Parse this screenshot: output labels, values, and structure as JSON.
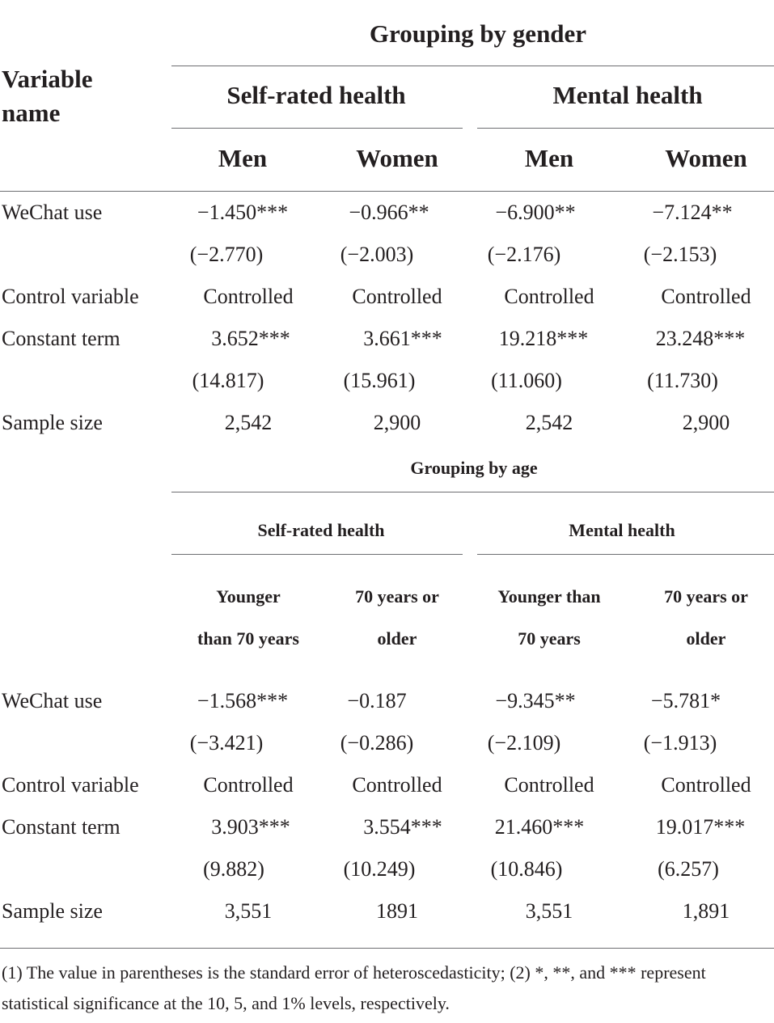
{
  "header": {
    "variable_name_line1": "Variable",
    "variable_name_line2": "name"
  },
  "gender": {
    "title": "Grouping by gender",
    "self_rated": "Self-rated health",
    "mental": "Mental health",
    "cols": [
      "Men",
      "Women",
      "Men",
      "Women"
    ],
    "rows": {
      "wechat": {
        "label": "WeChat use",
        "vals": [
          "−1.450***",
          "−0.966**",
          "−6.900**",
          "−7.124**"
        ],
        "se": [
          "(−2.770)",
          "(−2.003)",
          "(−2.176)",
          "(−2.153)"
        ]
      },
      "control": {
        "label": "Control variable",
        "vals": [
          "Controlled",
          "Controlled",
          "Controlled",
          "Controlled"
        ]
      },
      "constant": {
        "label": "Constant term",
        "vals": [
          "3.652***",
          "3.661***",
          "19.218***",
          "23.248***"
        ],
        "se": [
          "(14.817)",
          "(15.961)",
          "(11.060)",
          "(11.730)"
        ]
      },
      "sample": {
        "label": "Sample size",
        "vals": [
          "2,542",
          "2,900",
          "2,542",
          "2,900"
        ]
      }
    }
  },
  "age": {
    "title": "Grouping by age",
    "self_rated": "Self-rated health",
    "mental": "Mental health",
    "cols_line1": [
      "Younger",
      "70 years or",
      "Younger than",
      "70 years or"
    ],
    "cols_line2": [
      "than 70 years",
      "older",
      "70 years",
      "older"
    ],
    "rows": {
      "wechat": {
        "label": "WeChat use",
        "vals": [
          "−1.568***",
          "−0.187",
          "−9.345**",
          "−5.781*"
        ],
        "se": [
          "(−3.421)",
          "(−0.286)",
          "(−2.109)",
          "(−1.913)"
        ]
      },
      "control": {
        "label": "Control variable",
        "vals": [
          "Controlled",
          "Controlled",
          "Controlled",
          "Controlled"
        ]
      },
      "constant": {
        "label": "Constant term",
        "vals": [
          "3.903***",
          "3.554***",
          "21.460***",
          "19.017***"
        ],
        "se": [
          "(9.882)",
          "(10.249)",
          "(10.846)",
          "(6.257)"
        ]
      },
      "sample": {
        "label": "Sample size",
        "vals": [
          "3,551",
          "1891",
          "3,551",
          "1,891"
        ]
      }
    }
  },
  "footnote": "(1) The value in parentheses is the standard error of heteroscedasticity; (2) *, **, and *** represent statistical significance at the 10, 5, and 1% levels, respectively."
}
